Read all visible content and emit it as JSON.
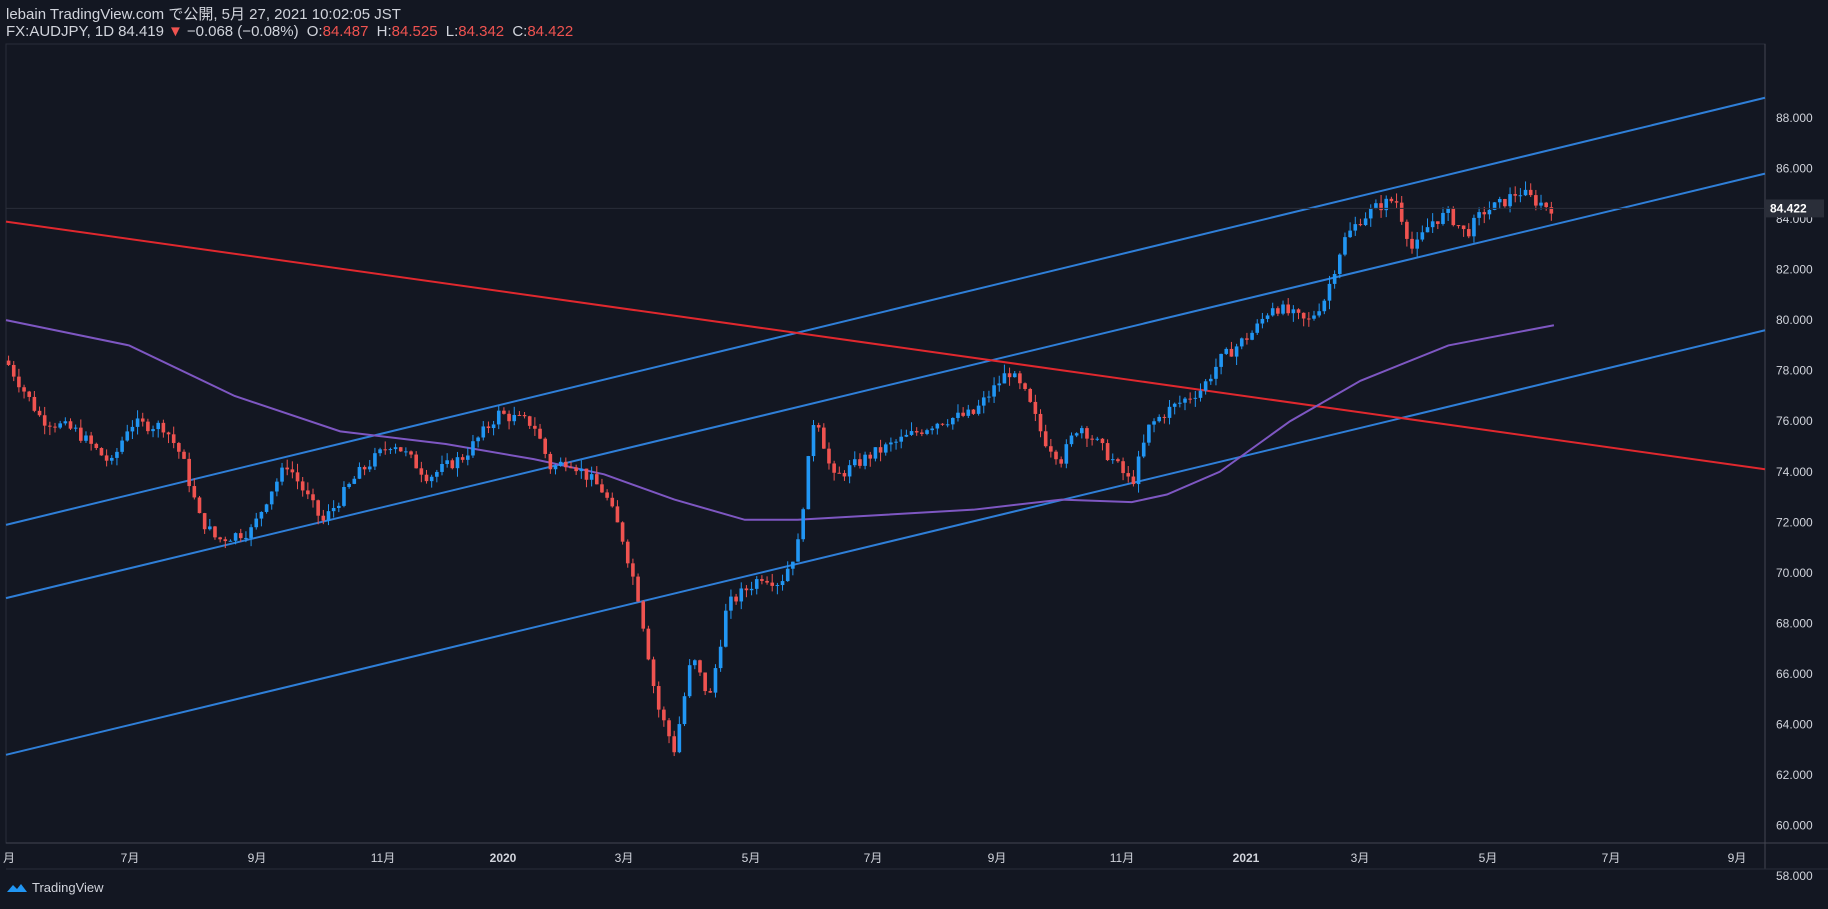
{
  "header": {
    "line1": "lebain TradingView.com で公開, 5月 27, 2021 10:02:05 JST",
    "symbol": "FX:AUDJPY, 1D",
    "last": "84.419",
    "change": "−0.068 (−0.08%)",
    "o_label": "O:",
    "o_val": "84.487",
    "h_label": "H:",
    "h_val": "84.525",
    "l_label": "L:",
    "l_val": "84.342",
    "c_label": "C:",
    "c_val": "84.422"
  },
  "brand": "TradingView",
  "colors": {
    "bg": "#131722",
    "up": "#2196f3",
    "down": "#ef5350",
    "channel": "#2f7fd8",
    "trend": "#e0282e",
    "ma": "#7e57c2",
    "text": "#d1d4dc"
  },
  "chart_data": {
    "type": "candlestick",
    "title": "FX:AUDJPY, 1D",
    "price_axis": {
      "min": 57,
      "max": 89,
      "ticks": [
        "88.000",
        "86.000",
        "84.000",
        "82.000",
        "80.000",
        "78.000",
        "76.000",
        "74.000",
        "72.000",
        "70.000",
        "68.000",
        "66.000",
        "64.000",
        "62.000",
        "60.000",
        "58.000"
      ]
    },
    "time_axis_labels": [
      "月",
      "7月",
      "9月",
      "11月",
      "2020",
      "3月",
      "5月",
      "7月",
      "9月",
      "11月",
      "2021",
      "3月",
      "5月",
      "7月",
      "9月"
    ],
    "last_price_label": "84.422",
    "last_price": 84.422,
    "trend_lines": [
      {
        "name": "channel-upper",
        "start": [
          0,
          71.9
        ],
        "end": [
          1,
          88.8
        ]
      },
      {
        "name": "channel-middle",
        "start": [
          0,
          69.0
        ],
        "end": [
          1,
          85.8
        ]
      },
      {
        "name": "channel-lower",
        "start": [
          0,
          62.8
        ],
        "end": [
          1,
          79.6
        ]
      },
      {
        "name": "red-downtrend",
        "start": [
          0,
          83.9
        ],
        "end": [
          1,
          74.1
        ]
      }
    ],
    "moving_average": {
      "name": "long-ma",
      "points": [
        [
          0,
          80.0
        ],
        [
          0.07,
          79.0
        ],
        [
          0.13,
          77.0
        ],
        [
          0.19,
          75.6
        ],
        [
          0.25,
          75.1
        ],
        [
          0.3,
          74.5
        ],
        [
          0.34,
          73.9
        ],
        [
          0.38,
          72.9
        ],
        [
          0.42,
          72.1
        ],
        [
          0.45,
          72.1
        ],
        [
          0.5,
          72.3
        ],
        [
          0.55,
          72.5
        ],
        [
          0.6,
          72.9
        ],
        [
          0.64,
          72.8
        ],
        [
          0.66,
          73.1
        ],
        [
          0.69,
          74.0
        ],
        [
          0.73,
          76.0
        ],
        [
          0.77,
          77.6
        ],
        [
          0.82,
          79.0
        ],
        [
          0.88,
          79.8
        ]
      ]
    },
    "price_path": [
      [
        0,
        78.4
      ],
      [
        0.02,
        76.1
      ],
      [
        0.04,
        75.6
      ],
      [
        0.06,
        74.3
      ],
      [
        0.07,
        75.9
      ],
      [
        0.09,
        75.8
      ],
      [
        0.1,
        74.6
      ],
      [
        0.11,
        72.2
      ],
      [
        0.12,
        71.3
      ],
      [
        0.14,
        71.7
      ],
      [
        0.15,
        73.2
      ],
      [
        0.16,
        74.3
      ],
      [
        0.18,
        72.0
      ],
      [
        0.2,
        73.9
      ],
      [
        0.22,
        75.2
      ],
      [
        0.24,
        73.8
      ],
      [
        0.26,
        74.6
      ],
      [
        0.28,
        76.3
      ],
      [
        0.3,
        75.9
      ],
      [
        0.31,
        74.1
      ],
      [
        0.32,
        74.5
      ],
      [
        0.34,
        73.2
      ],
      [
        0.35,
        71.5
      ],
      [
        0.36,
        68.9
      ],
      [
        0.37,
        64.8
      ],
      [
        0.38,
        63.0
      ],
      [
        0.39,
        66.7
      ],
      [
        0.4,
        65.0
      ],
      [
        0.41,
        68.7
      ],
      [
        0.43,
        69.9
      ],
      [
        0.44,
        69.6
      ],
      [
        0.45,
        71.0
      ],
      [
        0.46,
        76.5
      ],
      [
        0.47,
        73.7
      ],
      [
        0.49,
        74.6
      ],
      [
        0.51,
        75.3
      ],
      [
        0.53,
        76.0
      ],
      [
        0.55,
        76.3
      ],
      [
        0.57,
        78.0
      ],
      [
        0.58,
        77.0
      ],
      [
        0.59,
        75.3
      ],
      [
        0.6,
        74.5
      ],
      [
        0.61,
        75.9
      ],
      [
        0.63,
        74.4
      ],
      [
        0.64,
        73.5
      ],
      [
        0.65,
        75.8
      ],
      [
        0.66,
        76.4
      ],
      [
        0.68,
        77.3
      ],
      [
        0.69,
        78.4
      ],
      [
        0.71,
        79.6
      ],
      [
        0.72,
        80.6
      ],
      [
        0.74,
        79.9
      ],
      [
        0.75,
        80.9
      ],
      [
        0.76,
        83.1
      ],
      [
        0.77,
        84.0
      ],
      [
        0.78,
        84.5
      ],
      [
        0.79,
        84.8
      ],
      [
        0.8,
        82.7
      ],
      [
        0.81,
        83.9
      ],
      [
        0.82,
        84.2
      ],
      [
        0.83,
        83.4
      ],
      [
        0.84,
        84.3
      ],
      [
        0.85,
        84.6
      ],
      [
        0.86,
        85.1
      ],
      [
        0.87,
        84.7
      ],
      [
        0.88,
        84.42
      ]
    ]
  }
}
